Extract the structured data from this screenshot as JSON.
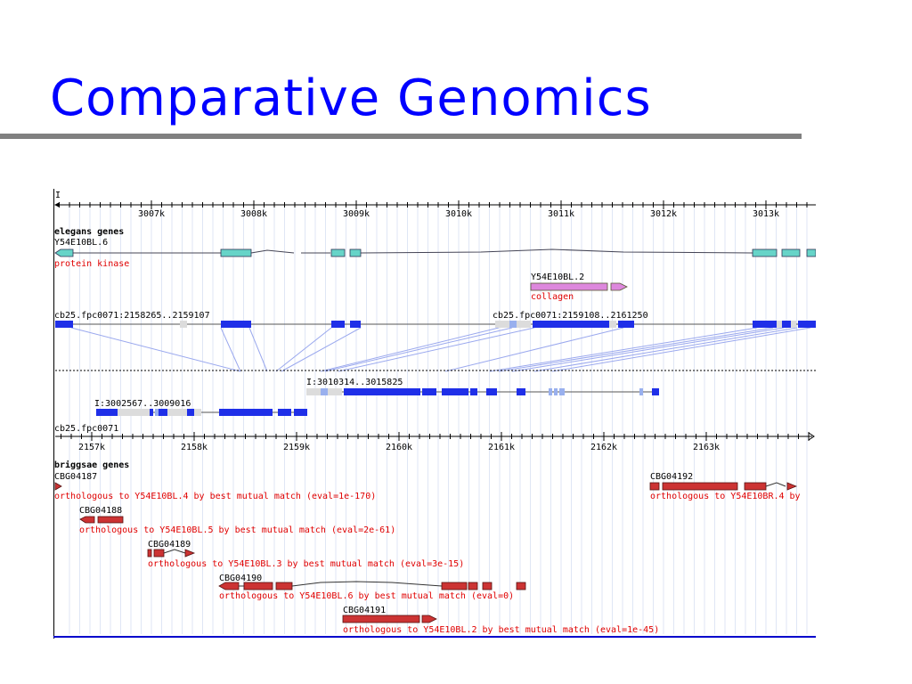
{
  "slide": {
    "title": "Comparative Genomics"
  },
  "browser": {
    "chromosome_label": "I",
    "upper_ruler_ticks": [
      "3007k",
      "3008k",
      "3009k",
      "3010k",
      "3011k",
      "3012k",
      "3013k"
    ],
    "elegans": {
      "header": "elegans genes",
      "gene1_name": "Y54E10BL.6",
      "gene1_desc": "protein kinase",
      "gene2_name": "Y54E10BL.2",
      "gene2_desc": "collagen"
    },
    "contigs_top": [
      "cb25.fpc0071:2158265..2159107",
      "cb25.fpc0071:2159108..2161250"
    ],
    "contigs_mid": [
      "I:3010314..3015825",
      "I:3002567..3009016"
    ],
    "lower_contig_label": "cb25.fpc0071",
    "lower_ruler_ticks": [
      "2157k",
      "2158k",
      "2159k",
      "2160k",
      "2161k",
      "2162k",
      "2163k"
    ],
    "briggsae": {
      "header": "briggsae genes",
      "genes": [
        {
          "name": "CBG04187",
          "desc": "orthologous to Y54E10BL.4 by best mutual match (eval=1e-170)"
        },
        {
          "name": "CBG04192",
          "desc": "orthologous to Y54E10BR.4 by"
        },
        {
          "name": "CBG04188",
          "desc": "orthologous to Y54E10BL.5 by best mutual match (eval=2e-61)"
        },
        {
          "name": "CBG04189",
          "desc": "orthologous to Y54E10BL.3 by best mutual match (eval=3e-15)"
        },
        {
          "name": "CBG04190",
          "desc": "orthologous to Y54E10BL.6 by best mutual match (eval=0)"
        },
        {
          "name": "CBG04191",
          "desc": "orthologous to Y54E10BL.2 by best mutual match (eval=1e-45)"
        }
      ]
    },
    "colors": {
      "title": "#0000ff",
      "elegans_exon": "#66d4c8",
      "collagen_gene": "#dd88dd",
      "alignment_block": "#1f2fe8",
      "alignment_light": "#dcdcdc",
      "alignment_mid": "#99b0ee",
      "briggsae_gene": "#cc3333",
      "label_red": "#e00000",
      "grid_line": "#c8d4ee",
      "connector": "#9aa8ee"
    }
  }
}
